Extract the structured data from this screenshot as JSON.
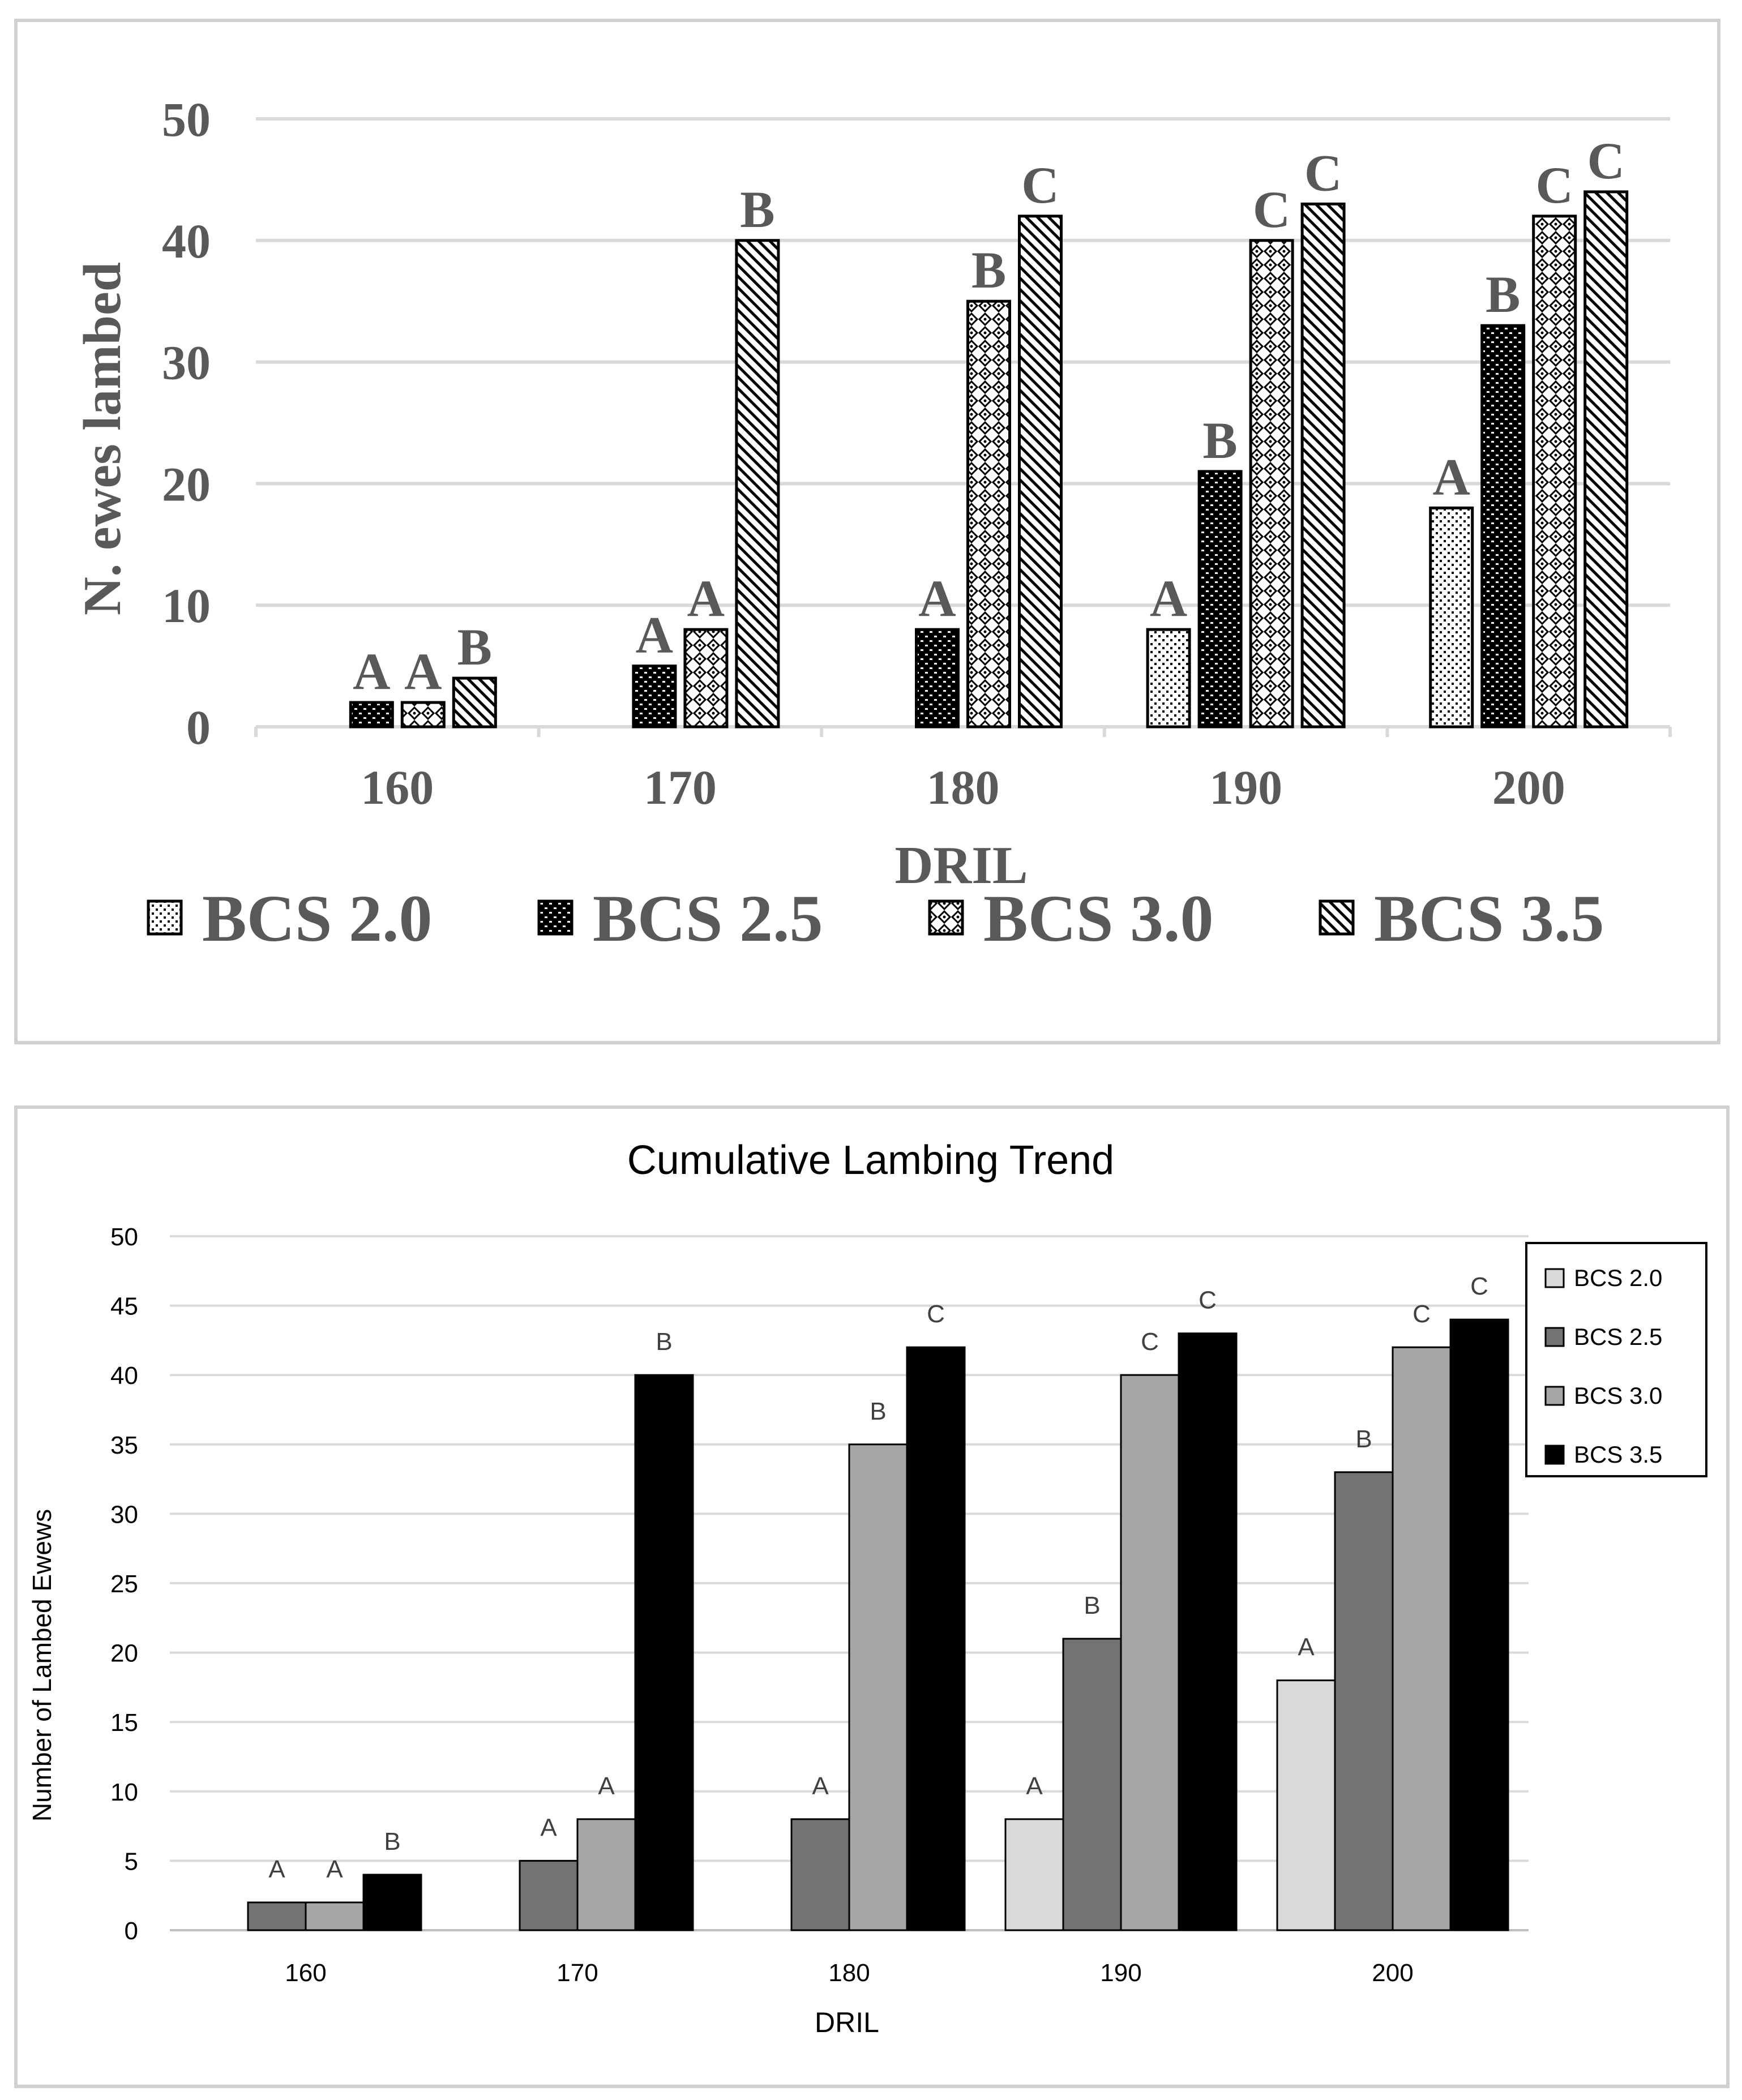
{
  "chart_data": [
    {
      "type": "bar",
      "title": "",
      "xlabel": "DRIL",
      "ylabel": "N. ewes lambed",
      "ylim": [
        0,
        50
      ],
      "yticks": [
        "0",
        "10",
        "20",
        "30",
        "40",
        "50"
      ],
      "categories": [
        "160",
        "170",
        "180",
        "190",
        "200"
      ],
      "legend_position": "bottom",
      "series": [
        {
          "name": "BCS 2.0",
          "pattern": "dots",
          "values": [
            0,
            0,
            0,
            8,
            18
          ],
          "labels": [
            "",
            "",
            "",
            "A",
            "A"
          ]
        },
        {
          "name": "BCS 2.5",
          "pattern": "dense-check",
          "values": [
            2,
            5,
            8,
            21,
            33
          ],
          "labels": [
            "A",
            "A",
            "A",
            "B",
            "B"
          ]
        },
        {
          "name": "BCS 3.0",
          "pattern": "circles",
          "values": [
            2,
            8,
            35,
            40,
            42
          ],
          "labels": [
            "A",
            "A",
            "B",
            "C",
            "C"
          ]
        },
        {
          "name": "BCS 3.5",
          "pattern": "diagonal",
          "values": [
            4,
            40,
            42,
            43,
            44
          ],
          "labels": [
            "B",
            "B",
            "C",
            "C",
            "C"
          ]
        }
      ]
    },
    {
      "type": "bar",
      "title": "Cumulative Lambing Trend",
      "xlabel": "DRIL",
      "ylabel": "Number of Lambed Ewews",
      "ylim": [
        0,
        50
      ],
      "yticks": [
        "0",
        "5",
        "10",
        "15",
        "20",
        "25",
        "30",
        "35",
        "40",
        "45",
        "50"
      ],
      "categories": [
        "160",
        "170",
        "180",
        "190",
        "200"
      ],
      "legend_position": "right",
      "series": [
        {
          "name": "BCS 2.0",
          "color": "#d9d9d9",
          "values": [
            0,
            0,
            0,
            8,
            18
          ],
          "labels": [
            "",
            "",
            "",
            "A",
            "A"
          ]
        },
        {
          "name": "BCS 2.5",
          "color": "#737373",
          "values": [
            2,
            5,
            8,
            21,
            33
          ],
          "labels": [
            "A",
            "A",
            "A",
            "B",
            "B"
          ]
        },
        {
          "name": "BCS 3.0",
          "color": "#a6a6a6",
          "values": [
            2,
            8,
            35,
            40,
            42
          ],
          "labels": [
            "A",
            "A",
            "B",
            "C",
            "C"
          ]
        },
        {
          "name": "BCS 3.5",
          "color": "#000000",
          "values": [
            4,
            40,
            42,
            43,
            44
          ],
          "labels": [
            "B",
            "B",
            "C",
            "C",
            "C"
          ]
        }
      ]
    }
  ]
}
